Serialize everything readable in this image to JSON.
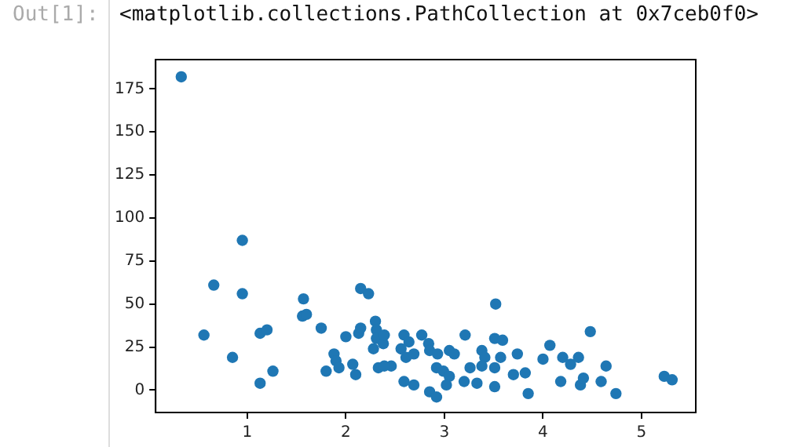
{
  "chart_data": {
    "type": "scatter",
    "annotations": [
      "Out[1]:",
      "<matplotlib.collections.PathCollection at 0x7ceb0f0>"
    ],
    "series": [
      {
        "color": "#1f77b4",
        "x": [
          0.33,
          0.56,
          0.66,
          0.85,
          0.95,
          0.95,
          1.13,
          1.13,
          1.2,
          1.26,
          1.57,
          1.56,
          1.6,
          1.75,
          1.8,
          1.88,
          1.9,
          1.93,
          2.0,
          2.07,
          2.1,
          2.15,
          2.23,
          2.13,
          2.15,
          2.3,
          2.31,
          2.31,
          2.28,
          2.33,
          2.38,
          2.46,
          2.39,
          2.39,
          3.52,
          2.59,
          2.64,
          2.77,
          2.56,
          2.61,
          2.69,
          2.84,
          2.85,
          2.93,
          3.05,
          3.1,
          2.92,
          2.99,
          3.05,
          2.59,
          2.69,
          2.85,
          2.92,
          3.02,
          3.21,
          3.26,
          3.2,
          3.33,
          3.38,
          3.41,
          3.38,
          3.51,
          3.59,
          3.51,
          3.57,
          3.51,
          3.74,
          3.7,
          3.82,
          3.85,
          4.0,
          4.07,
          4.2,
          4.28,
          4.36,
          4.18,
          4.38,
          4.41,
          4.48,
          4.59,
          4.64,
          4.74,
          5.23,
          5.31
        ],
        "values": [
          182,
          32,
          61,
          19,
          87,
          56,
          4,
          33,
          35,
          11,
          53,
          43,
          44,
          36,
          11,
          21,
          17,
          13,
          31,
          15,
          9,
          59,
          56,
          33,
          36,
          40,
          35,
          30,
          24,
          13,
          27,
          14,
          32,
          14,
          50,
          32,
          28,
          32,
          24,
          19,
          21,
          27,
          23,
          21,
          23,
          21,
          13,
          11,
          8,
          5,
          3,
          -1,
          -4,
          3,
          32,
          13,
          5,
          4,
          23,
          19,
          14,
          30,
          29,
          13,
          19,
          2,
          21,
          9,
          10,
          -2,
          18,
          26,
          19,
          15,
          19,
          5,
          3,
          7,
          34,
          5,
          14,
          -2,
          8,
          6
        ]
      }
    ],
    "marker": "circle",
    "grid": false,
    "legend": false,
    "xlim": [
      0.07,
      5.55
    ],
    "xticks": [
      1,
      2,
      3,
      4,
      5
    ],
    "ylim": [
      -13,
      192
    ],
    "yticks": [
      0,
      25,
      50,
      75,
      100,
      125,
      150,
      175
    ]
  }
}
